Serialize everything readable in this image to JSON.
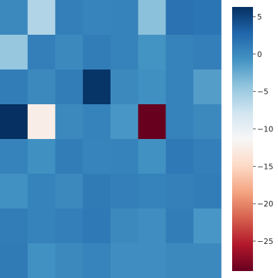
{
  "chart_data": {
    "type": "heatmap",
    "title": "",
    "xlabel": "",
    "ylabel": "",
    "colormap": "RdBu",
    "vmin": -29,
    "vmax": 6.3,
    "colorbar": {
      "ticks": [
        5,
        0,
        -5,
        -10,
        -15,
        -20,
        -25
      ],
      "tick_labels": [
        "5",
        "0",
        "−5",
        "−10",
        "−15",
        "−20",
        "−25"
      ]
    },
    "rows": 8,
    "cols": 8,
    "values": [
      [
        0.0,
        -6.0,
        0.8,
        0.5,
        0.6,
        -4.0,
        1.8,
        1.6
      ],
      [
        -4.5,
        0.8,
        0.0,
        1.0,
        0.6,
        -0.8,
        0.6,
        0.8
      ],
      [
        1.0,
        0.0,
        1.0,
        6.0,
        0.0,
        -0.5,
        0.6,
        -1.5
      ],
      [
        6.3,
        -12.5,
        0.0,
        0.6,
        -1.0,
        -29.0,
        0.6,
        0.0
      ],
      [
        0.6,
        -0.5,
        1.0,
        0.5,
        0.6,
        -0.6,
        1.3,
        0.8
      ],
      [
        -0.6,
        0.6,
        0.0,
        1.2,
        0.8,
        0.6,
        0.7,
        1.0
      ],
      [
        1.0,
        0.6,
        0.8,
        1.3,
        0.0,
        -0.4,
        1.0,
        -1.0
      ],
      [
        1.2,
        -0.6,
        0.0,
        0.5,
        -0.4,
        -0.4,
        0.0,
        0.0
      ]
    ]
  }
}
